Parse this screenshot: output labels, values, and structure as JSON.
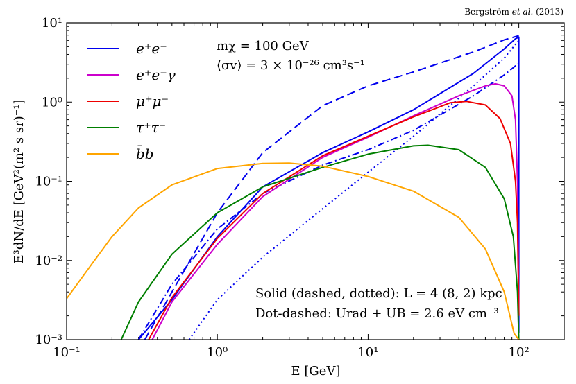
{
  "credit": {
    "author": "Bergström",
    "etal": "et al.",
    "year": "(2013)"
  },
  "chart_data": {
    "type": "line",
    "xscale": "log",
    "yscale": "log",
    "xlim": [
      0.1,
      200
    ],
    "ylim": [
      0.001,
      10
    ],
    "xlabel": "E [GeV]",
    "ylabel": "E³dN/dE [GeV²(m² s sr)⁻¹]",
    "xticks": [
      {
        "value": 0.1,
        "label": "10⁻¹"
      },
      {
        "value": 1,
        "label": "10⁰"
      },
      {
        "value": 10,
        "label": "10¹"
      },
      {
        "value": 100,
        "label": "10²"
      }
    ],
    "yticks": [
      {
        "value": 0.001,
        "label": "10⁻³"
      },
      {
        "value": 0.01,
        "label": "10⁻²"
      },
      {
        "value": 0.1,
        "label": "10⁻¹"
      },
      {
        "value": 1,
        "label": "10⁰"
      },
      {
        "value": 10,
        "label": "10¹"
      }
    ],
    "legend_position": "top-left",
    "annotations": {
      "mass": "mχ = 100 GeV",
      "cross_section": "⟨σv⟩ = 3 × 10⁻²⁶ cm³s⁻¹",
      "line_style_note": "Solid (dashed, dotted): L = 4 (8, 2) kpc",
      "dot_dashed_note": "Dot-dashed: Urad + UB = 2.6 eV cm⁻³"
    },
    "series": [
      {
        "name": "e⁺e⁻",
        "color": "#0000ee",
        "dash": "solid",
        "x": [
          0.3,
          0.5,
          1,
          2,
          5,
          10,
          20,
          50,
          80,
          95,
          100,
          100
        ],
        "y": [
          0.001,
          0.0032,
          0.02,
          0.085,
          0.23,
          0.42,
          0.8,
          2.3,
          4.7,
          6.3,
          6.6,
          0.0012
        ]
      },
      {
        "name": "e⁺e⁻ (L = 8 kpc)",
        "color": "#0000ee",
        "dash": "dashed",
        "x": [
          0.33,
          0.5,
          1,
          2,
          5,
          10,
          20,
          50,
          80,
          100
        ],
        "y": [
          0.001,
          0.004,
          0.04,
          0.23,
          0.9,
          1.6,
          2.4,
          4.3,
          6.1,
          6.9
        ]
      },
      {
        "name": "e⁺e⁻ (L = 2 kpc)",
        "color": "#0000ee",
        "dash": "dotted",
        "x": [
          0.65,
          1,
          2,
          5,
          10,
          20,
          50,
          80,
          100
        ],
        "y": [
          0.001,
          0.0032,
          0.011,
          0.045,
          0.13,
          0.37,
          1.6,
          3.6,
          6.0
        ]
      },
      {
        "name": "e⁺e⁻ (dot-dashed)",
        "color": "#0000ee",
        "dash": "dashdot",
        "x": [
          0.3,
          0.5,
          1,
          2,
          5,
          10,
          20,
          50,
          80,
          100
        ],
        "y": [
          0.001,
          0.005,
          0.025,
          0.07,
          0.16,
          0.25,
          0.44,
          1.2,
          2.2,
          3.1
        ]
      },
      {
        "name": "e⁺e⁻γ",
        "color": "#cc00cc",
        "dash": "solid",
        "x": [
          0.37,
          0.5,
          1,
          2,
          5,
          10,
          20,
          40,
          60,
          70,
          80,
          90,
          95,
          98,
          100
        ],
        "y": [
          0.001,
          0.003,
          0.016,
          0.064,
          0.2,
          0.36,
          0.67,
          1.2,
          1.6,
          1.7,
          1.6,
          1.2,
          0.6,
          0.1,
          0.002
        ]
      },
      {
        "name": "μ⁺μ⁻",
        "color": "#ee0000",
        "dash": "solid",
        "x": [
          0.35,
          0.5,
          1,
          2,
          5,
          10,
          20,
          35,
          45,
          60,
          75,
          88,
          95,
          98,
          100
        ],
        "y": [
          0.001,
          0.0034,
          0.019,
          0.07,
          0.21,
          0.37,
          0.65,
          0.98,
          1.02,
          0.92,
          0.62,
          0.3,
          0.1,
          0.03,
          0.002
        ]
      },
      {
        "name": "τ⁺τ⁻",
        "color": "#007f00",
        "dash": "solid",
        "x": [
          0.23,
          0.3,
          0.5,
          1,
          2,
          5,
          10,
          20,
          25,
          40,
          60,
          80,
          92,
          98,
          100
        ],
        "y": [
          0.001,
          0.003,
          0.012,
          0.04,
          0.085,
          0.15,
          0.22,
          0.28,
          0.285,
          0.25,
          0.15,
          0.06,
          0.02,
          0.004,
          0.001
        ]
      },
      {
        "name": "b̄b",
        "color": "#ffa500",
        "dash": "solid",
        "x": [
          0.1,
          0.15,
          0.2,
          0.3,
          0.5,
          1,
          2,
          3,
          5,
          10,
          20,
          40,
          60,
          80,
          93,
          100
        ],
        "y": [
          0.0033,
          0.0095,
          0.02,
          0.046,
          0.09,
          0.145,
          0.168,
          0.17,
          0.155,
          0.115,
          0.075,
          0.035,
          0.014,
          0.004,
          0.0012,
          0.001
        ]
      }
    ]
  }
}
